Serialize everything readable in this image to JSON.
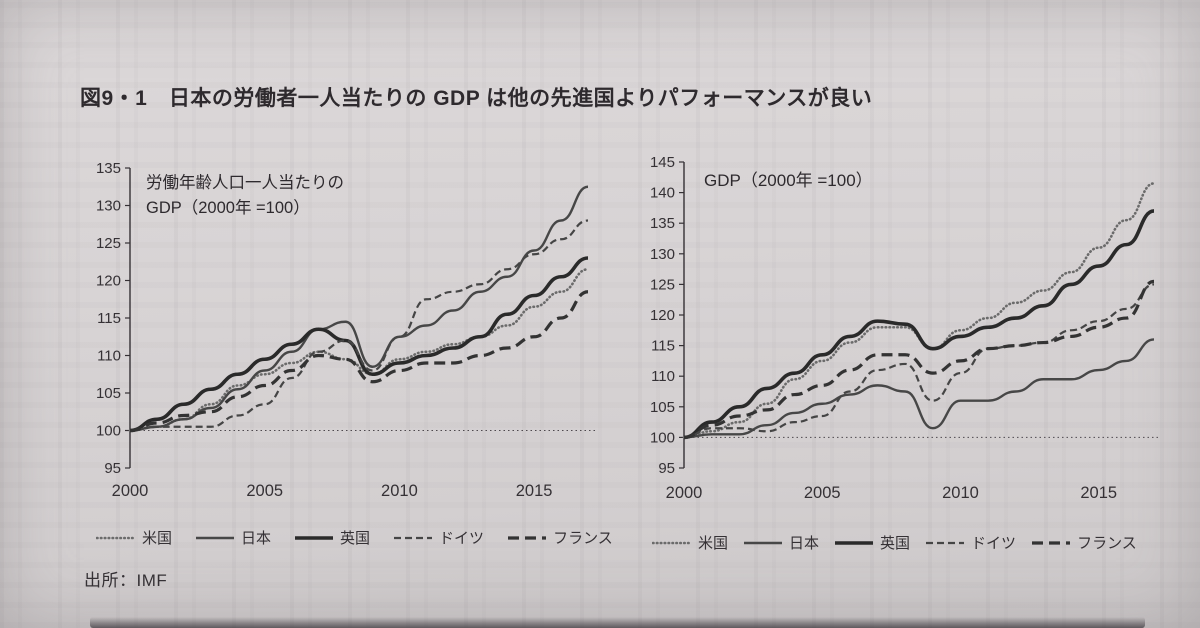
{
  "page": {
    "title": "図9・1　日本の労働者一人当たりの GDP は他の先進国よりパフォーマンスが良い",
    "source": "出所：IMF",
    "paper_color": "#d8d4d5",
    "ink_color": "#353135"
  },
  "legend_items": [
    {
      "key": "us",
      "label": "米国"
    },
    {
      "key": "japan",
      "label": "日本"
    },
    {
      "key": "uk",
      "label": "英国"
    },
    {
      "key": "germany",
      "label": "ドイツ"
    },
    {
      "key": "france",
      "label": "フランス"
    }
  ],
  "chart_data": [
    {
      "type": "line",
      "title": "労働年齢人口一人当たりの GDP（2000年 =100）",
      "annotation_lines": [
        "労働年齢人口一人当たりの",
        "GDP（2000年 =100）"
      ],
      "x": [
        2000,
        2001,
        2002,
        2003,
        2004,
        2005,
        2006,
        2007,
        2008,
        2009,
        2010,
        2011,
        2012,
        2013,
        2014,
        2015,
        2016,
        2017
      ],
      "xticks": [
        2000,
        2005,
        2010,
        2015
      ],
      "ylim": [
        95,
        135
      ],
      "yticks": [
        135,
        130,
        125,
        120,
        115,
        110,
        105,
        100,
        95
      ],
      "baseline": 100,
      "grid": false,
      "legend_position": "bottom",
      "series": [
        {
          "name": "米国",
          "key": "us",
          "style": {
            "color": "#6b6b6b",
            "width": 2.6,
            "dash": "0.5 3.4",
            "cap": "round"
          },
          "values": [
            100,
            100.5,
            101.5,
            103.5,
            106,
            107.5,
            109,
            110.5,
            109.5,
            107.5,
            109.5,
            110.5,
            111.5,
            112.5,
            114,
            116.5,
            118.5,
            121.5
          ]
        },
        {
          "name": "日本",
          "key": "japan",
          "style": {
            "color": "#474747",
            "width": 2.4,
            "dash": "",
            "cap": "butt"
          },
          "values": [
            100,
            100.5,
            101.5,
            103,
            105.5,
            108,
            110.5,
            113.5,
            114.5,
            108.5,
            112.5,
            114,
            116,
            118.5,
            120.5,
            124,
            128,
            132.5
          ]
        },
        {
          "name": "英国",
          "key": "uk",
          "style": {
            "color": "#2a2a2a",
            "width": 3.6,
            "dash": "",
            "cap": "butt"
          },
          "values": [
            100,
            101.5,
            103.5,
            105.5,
            107.5,
            109.5,
            111.5,
            113.5,
            112,
            107.5,
            109,
            110,
            111,
            112.5,
            115.5,
            118,
            120.5,
            123
          ]
        },
        {
          "name": "ドイツ",
          "key": "germany",
          "style": {
            "color": "#454545",
            "width": 2.2,
            "dash": "7 4",
            "cap": "butt"
          },
          "values": [
            100,
            100.5,
            100.5,
            100.5,
            102,
            103.5,
            107,
            110.5,
            112,
            108,
            112.5,
            117.5,
            118.5,
            119.5,
            121.5,
            123.5,
            125.5,
            128
          ]
        },
        {
          "name": "フランス",
          "key": "france",
          "style": {
            "color": "#333333",
            "width": 3.2,
            "dash": "11 6",
            "cap": "butt"
          },
          "values": [
            100,
            101,
            102,
            102.5,
            104.5,
            106,
            108,
            110,
            109.5,
            106.5,
            108,
            109,
            109,
            110,
            111,
            112.5,
            115,
            118.5
          ]
        }
      ]
    },
    {
      "type": "line",
      "title": "GDP（2000年 =100）",
      "annotation_lines": [
        "GDP（2000年 =100）"
      ],
      "x": [
        2000,
        2001,
        2002,
        2003,
        2004,
        2005,
        2006,
        2007,
        2008,
        2009,
        2010,
        2011,
        2012,
        2013,
        2014,
        2015,
        2016,
        2017
      ],
      "xticks": [
        2000,
        2005,
        2010,
        2015
      ],
      "ylim": [
        95,
        145
      ],
      "yticks": [
        145,
        140,
        135,
        130,
        125,
        120,
        115,
        110,
        105,
        100,
        95
      ],
      "baseline": 100,
      "grid": false,
      "legend_position": "bottom",
      "series": [
        {
          "name": "米国",
          "key": "us",
          "style": {
            "color": "#6b6b6b",
            "width": 2.6,
            "dash": "0.5 3.4",
            "cap": "round"
          },
          "values": [
            100,
            101,
            102.5,
            105.5,
            109.5,
            112.5,
            115.5,
            118,
            118,
            114.5,
            117.5,
            119.5,
            122,
            124,
            127,
            131,
            135.5,
            141.5
          ]
        },
        {
          "name": "日本",
          "key": "japan",
          "style": {
            "color": "#474747",
            "width": 2.4,
            "dash": "",
            "cap": "butt"
          },
          "values": [
            100,
            100.5,
            100.5,
            102,
            104,
            105.5,
            107,
            108.5,
            107.5,
            101.5,
            106,
            106,
            107.5,
            109.5,
            109.5,
            111,
            112.5,
            116
          ]
        },
        {
          "name": "英国",
          "key": "uk",
          "style": {
            "color": "#2a2a2a",
            "width": 3.6,
            "dash": "",
            "cap": "butt"
          },
          "values": [
            100,
            102.5,
            105,
            108,
            110.5,
            113.5,
            116.5,
            119,
            118.5,
            114.5,
            116.5,
            118,
            119.5,
            121.5,
            125,
            128,
            131.5,
            137
          ]
        },
        {
          "name": "ドイツ",
          "key": "germany",
          "style": {
            "color": "#454545",
            "width": 2.2,
            "dash": "7 4",
            "cap": "butt"
          },
          "values": [
            100,
            101.5,
            101.5,
            101,
            102.5,
            103.5,
            107.5,
            111,
            112,
            106,
            110.5,
            114.5,
            115,
            115.5,
            117.5,
            119,
            121,
            125
          ]
        },
        {
          "name": "フランス",
          "key": "france",
          "style": {
            "color": "#333333",
            "width": 3.2,
            "dash": "11 6",
            "cap": "butt"
          },
          "values": [
            100,
            102,
            103.5,
            104.5,
            107,
            108.5,
            111,
            113.5,
            113.5,
            110.5,
            112.5,
            114.5,
            115,
            115.5,
            116.5,
            118,
            119.5,
            125.5
          ]
        }
      ]
    }
  ]
}
